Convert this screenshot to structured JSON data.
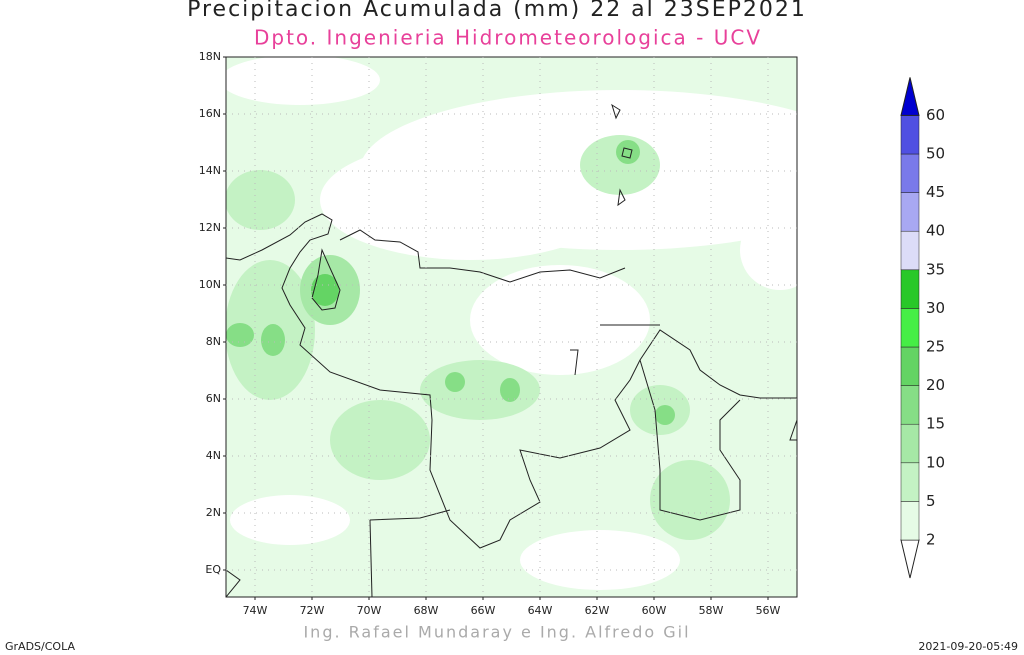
{
  "title": "Precipitacion Acumulada (mm) 22 al 23SEP2021",
  "subtitle": "Dpto. Ingenieria Hidrometeorologica - UCV",
  "credit": "Ing. Rafael Mundaray e Ing. Alfredo Gil",
  "software": "GrADS/COLA",
  "timestamp": "2021-09-20-05:49",
  "lat_labels": [
    "18N",
    "16N",
    "14N",
    "12N",
    "10N",
    "8N",
    "6N",
    "4N",
    "2N",
    "EQ"
  ],
  "lon_labels": [
    "74W",
    "72W",
    "70W",
    "68W",
    "66W",
    "64W",
    "62W",
    "60W",
    "58W",
    "56W"
  ],
  "colorbar": {
    "levels": [
      2,
      5,
      10,
      15,
      20,
      25,
      30,
      35,
      40,
      45,
      50,
      60
    ],
    "colors": [
      "#ffffff",
      "#e6fbe6",
      "#c4f2c4",
      "#a6e8a6",
      "#86de86",
      "#64d464",
      "#46ee46",
      "#28c828",
      "#dcdcf8",
      "#a8a8f2",
      "#7a7aea",
      "#5050e2",
      "#0000d0"
    ]
  }
}
